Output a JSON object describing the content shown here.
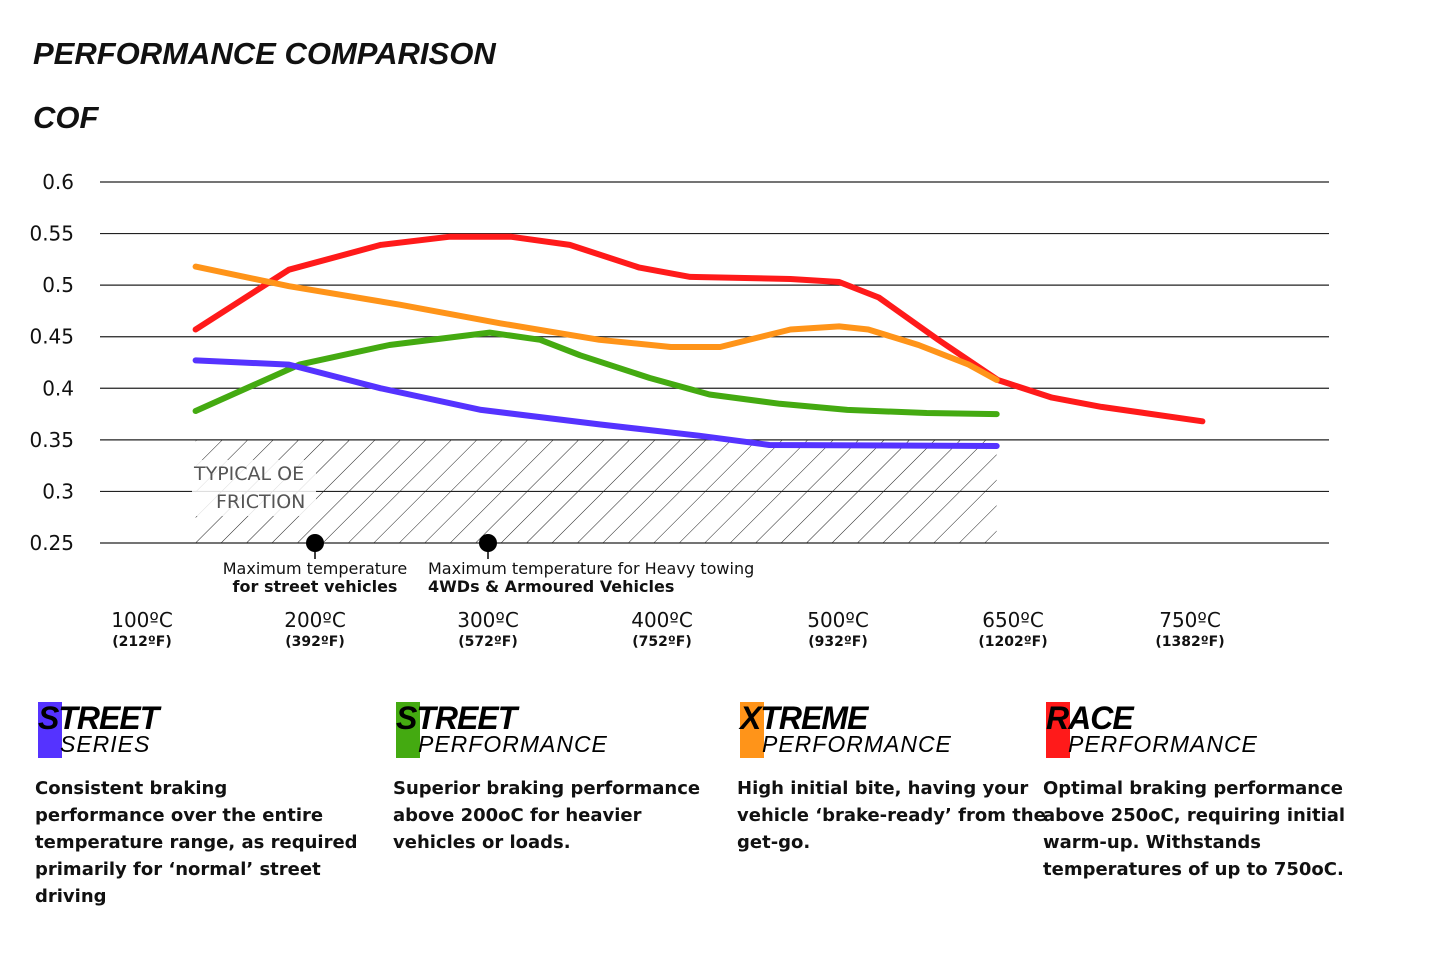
{
  "title": "PERFORMANCE COMPARISON",
  "chart_data": {
    "type": "line",
    "ylabel": "COF",
    "ylim": [
      0.25,
      0.6
    ],
    "yticks": [
      "0.6",
      "0.55",
      "0.5",
      "0.45",
      "0.4",
      "0.35",
      "0.3",
      "0.25"
    ],
    "grid": true,
    "xticks": [
      {
        "value": 100,
        "label": "100ºC",
        "sub": "(212ºF)"
      },
      {
        "value": 200,
        "label": "200ºC",
        "sub": "(392ºF)"
      },
      {
        "value": 300,
        "label": "300ºC",
        "sub": "(572ºF)"
      },
      {
        "value": 400,
        "label": "400ºC",
        "sub": "(752ºF)"
      },
      {
        "value": 500,
        "label": "500ºC",
        "sub": "(932ºF)"
      },
      {
        "value": 650,
        "label": "650ºC",
        "sub": "(1202ºF)"
      },
      {
        "value": 750,
        "label": "750ºC",
        "sub": "(1382ºF)"
      }
    ],
    "region": {
      "label1": "TYPICAL OE",
      "label2": "FRICTION",
      "y": [
        0.25,
        0.35
      ],
      "x": [
        131,
        636
      ]
    },
    "markers": [
      {
        "x": 200,
        "y": 0.25,
        "line1": "Maximum temperature",
        "line2": "for street vehicles"
      },
      {
        "x": 300,
        "y": 0.25,
        "line1": "Maximum temperature for Heavy towing",
        "line2": "4WDs & Armoured Vehicles"
      }
    ],
    "series": [
      {
        "color": "#ff1a1a",
        "points": [
          [
            131,
            0.457
          ],
          [
            185,
            0.515
          ],
          [
            238,
            0.539
          ],
          [
            278,
            0.547
          ],
          [
            313,
            0.547
          ],
          [
            347,
            0.539
          ],
          [
            387,
            0.517
          ],
          [
            416,
            0.508
          ],
          [
            473,
            0.506
          ],
          [
            501,
            0.503
          ],
          [
            535,
            0.488
          ],
          [
            586,
            0.447
          ],
          [
            637,
            0.408
          ],
          [
            672,
            0.391
          ],
          [
            700,
            0.382
          ],
          [
            757,
            0.368
          ]
        ]
      },
      {
        "color": "#ff9419",
        "points": [
          [
            131,
            0.518
          ],
          [
            185,
            0.499
          ],
          [
            249,
            0.481
          ],
          [
            307,
            0.463
          ],
          [
            364,
            0.447
          ],
          [
            405,
            0.44
          ],
          [
            433,
            0.44
          ],
          [
            473,
            0.457
          ],
          [
            501,
            0.46
          ],
          [
            526,
            0.457
          ],
          [
            569,
            0.442
          ],
          [
            612,
            0.423
          ],
          [
            636,
            0.408
          ]
        ]
      },
      {
        "color": "#44aa11",
        "points": [
          [
            131,
            0.378
          ],
          [
            191,
            0.423
          ],
          [
            243,
            0.442
          ],
          [
            301,
            0.454
          ],
          [
            330,
            0.447
          ],
          [
            353,
            0.432
          ],
          [
            393,
            0.41
          ],
          [
            427,
            0.394
          ],
          [
            467,
            0.385
          ],
          [
            508,
            0.379
          ],
          [
            576,
            0.376
          ],
          [
            636,
            0.375
          ]
        ]
      },
      {
        "color": "#5533ff",
        "points": [
          [
            131,
            0.427
          ],
          [
            185,
            0.423
          ],
          [
            238,
            0.4
          ],
          [
            296,
            0.379
          ],
          [
            364,
            0.365
          ],
          [
            421,
            0.354
          ],
          [
            461,
            0.345
          ],
          [
            636,
            0.344
          ]
        ]
      }
    ]
  },
  "products": [
    {
      "line1": "STREET",
      "line2": "SERIES",
      "color": "#5533ff",
      "desc": "Consistent braking performance over the entire temperature range, as required primarily for ‘normal’ street driving"
    },
    {
      "line1": "STREET",
      "line2": "PERFORMANCE",
      "color": "#44aa11",
      "desc": "Superior braking performance above 200oC for heavier vehicles or loads."
    },
    {
      "line1": "XTREME",
      "line2": "PERFORMANCE",
      "color": "#ff9419",
      "desc": "High initial bite, having your vehicle ‘brake-ready’ from the get-go."
    },
    {
      "line1": "RACE",
      "line2": "PERFORMANCE",
      "color": "#ff1a1a",
      "desc": "Optimal braking performance above 250oC, requiring initial warm-up. Withstands temperatures of up to 750oC."
    }
  ]
}
